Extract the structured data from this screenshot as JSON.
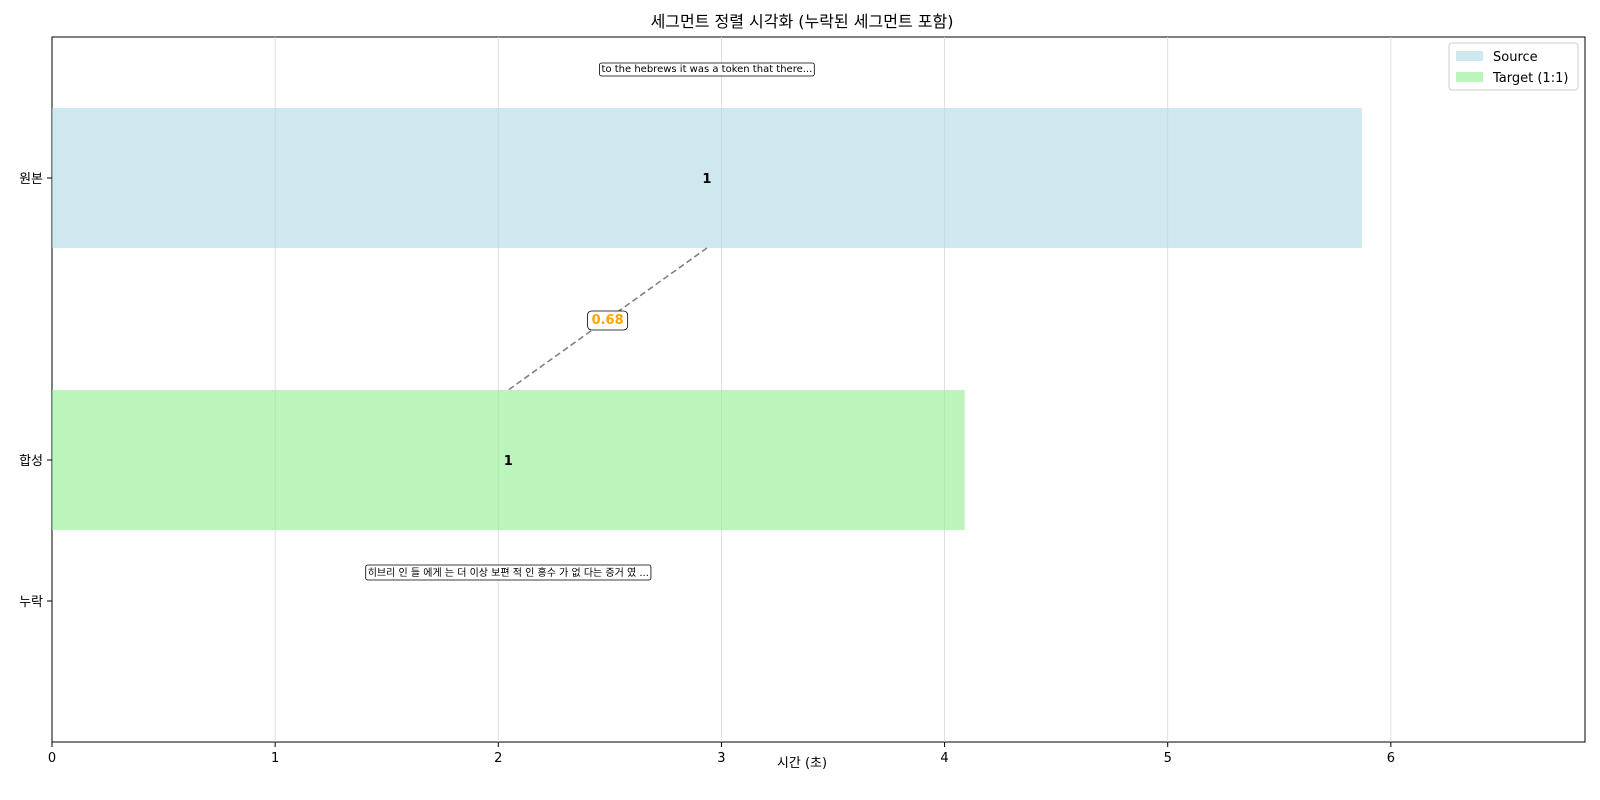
{
  "chart_data": {
    "type": "bar",
    "orientation": "horizontal",
    "title": "세그먼트 정렬 시각화 (누락된 세그먼트 포함)",
    "xlabel": "시간 (초)",
    "ylabel": "",
    "xlim": [
      0,
      6.87
    ],
    "xticks": [
      0,
      1,
      2,
      3,
      4,
      5,
      6
    ],
    "grid": "x",
    "categories": [
      "원본",
      "합성",
      "누락"
    ],
    "legend_position": "top-right",
    "series": [
      {
        "name": "Source",
        "color": "#add8e6",
        "category": "원본",
        "segments": [
          {
            "start": 0,
            "end": 5.87,
            "label": "1",
            "text": "to the hebrews it was a token that there..."
          }
        ]
      },
      {
        "name": "Target (1:1)",
        "color": "#90ee90",
        "category": "합성",
        "segments": [
          {
            "start": 0,
            "end": 4.09,
            "label": "1",
            "text": "히브리 인 들 에게 는 더 이상 보편 적 인 홍수 가 없 다는 증거 였 ..."
          }
        ]
      }
    ],
    "alignments": [
      {
        "source_segment": "1",
        "target_segment": "1",
        "score": "0.68"
      }
    ],
    "colors": {
      "score": "#ffa500",
      "connector": "#808080"
    }
  }
}
